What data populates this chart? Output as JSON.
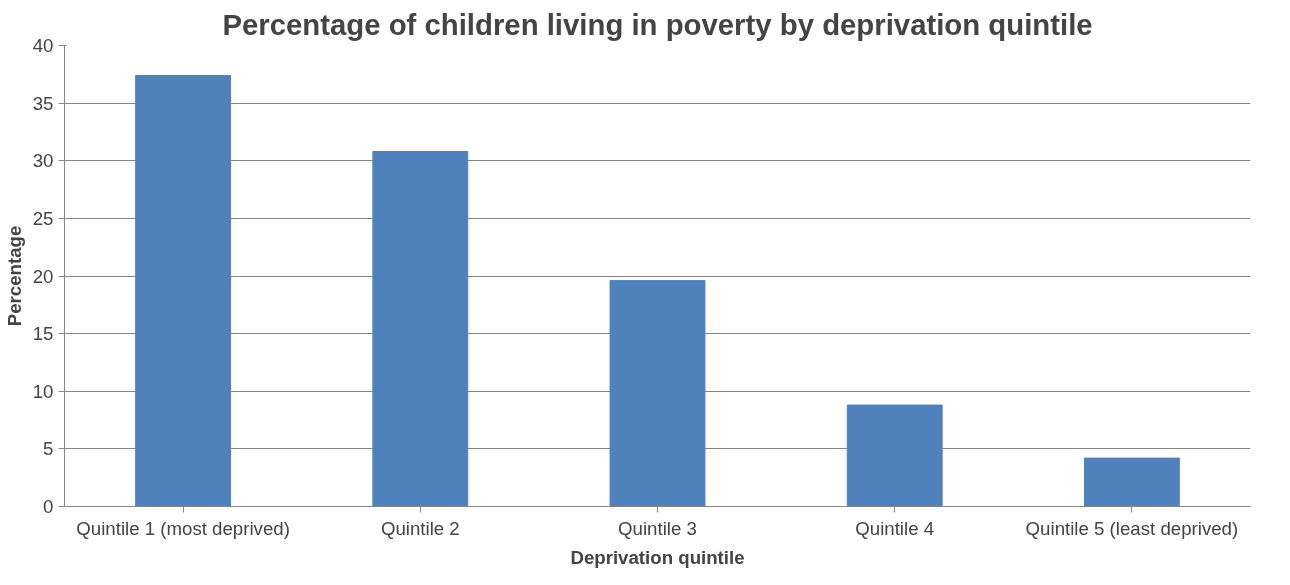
{
  "chart_data": {
    "type": "bar",
    "title": "Percentage of children living in poverty by deprivation quintile",
    "xlabel": "Deprivation quintile",
    "ylabel": "Percentage",
    "categories": [
      "Quintile 1 (most deprived)",
      "Quintile 2",
      "Quintile 3",
      "Quintile 4",
      "Quintile 5 (least deprived)"
    ],
    "values": [
      37.4,
      30.8,
      19.6,
      8.8,
      4.2
    ],
    "color": "#4f81bd",
    "ylim": [
      0,
      40
    ],
    "yticks": [
      0,
      5,
      10,
      15,
      20,
      25,
      30,
      35,
      40
    ],
    "grid": "y"
  }
}
